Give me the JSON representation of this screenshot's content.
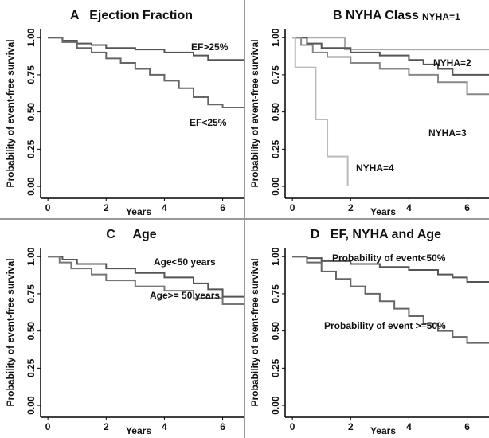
{
  "chart_data": [
    {
      "type": "line",
      "step": true,
      "title": "A   Ejection Fraction",
      "x_label": "Years",
      "y_label": "Probability of event-free survival",
      "xlim": [
        -0.25,
        6.75
      ],
      "ylim": [
        -0.08,
        1.06
      ],
      "xticks": [
        0,
        2,
        4,
        6
      ],
      "yticks": [
        {
          "value": 0,
          "label": "0.00"
        },
        0.25,
        {
          "value": 0.5,
          "label": "0.50"
        },
        0.75,
        {
          "value": 1,
          "label": "1.00"
        }
      ],
      "series": [
        {
          "name": "EF>25%",
          "color": "#555555",
          "x": [
            0,
            0.5,
            1,
            1.5,
            2,
            3,
            4,
            5,
            5.5,
            6.75
          ],
          "values": [
            1,
            0.98,
            0.96,
            0.95,
            0.93,
            0.92,
            0.9,
            0.88,
            0.85,
            0.85
          ]
        },
        {
          "name": "EF<25%",
          "color": "#666666",
          "x": [
            0,
            0.5,
            1,
            1.5,
            2,
            2.5,
            3,
            3.5,
            4,
            4.5,
            5,
            5.5,
            6,
            6.75
          ],
          "values": [
            1,
            0.97,
            0.93,
            0.9,
            0.86,
            0.83,
            0.79,
            0.75,
            0.71,
            0.66,
            0.6,
            0.55,
            0.53,
            0.53
          ]
        }
      ]
    },
    {
      "type": "line",
      "step": true,
      "title": "B NYHA Class",
      "x_label": "Years",
      "y_label": "Probability of event-free survival",
      "xlim": [
        -0.25,
        6.75
      ],
      "ylim": [
        -0.08,
        1.06
      ],
      "xticks": [
        0,
        2,
        4,
        6
      ],
      "yticks": [
        {
          "value": 0,
          "label": "0.00"
        },
        0.25,
        {
          "value": 0.5,
          "label": "0.50"
        },
        0.75,
        {
          "value": 1,
          "label": "1.00"
        }
      ],
      "series": [
        {
          "name": "NYHA=1",
          "color": "#aaaaaa",
          "x": [
            0,
            1.8,
            6.75
          ],
          "values": [
            1,
            0.92,
            0.92
          ]
        },
        {
          "name": "NYHA=2",
          "color": "#555555",
          "x": [
            0,
            0.5,
            1,
            2,
            3,
            4,
            4.5,
            5,
            5.5,
            6.75
          ],
          "values": [
            1,
            0.96,
            0.93,
            0.9,
            0.88,
            0.85,
            0.82,
            0.79,
            0.75,
            0.75
          ]
        },
        {
          "name": "NYHA=3",
          "color": "#888888",
          "x": [
            0,
            0.3,
            0.7,
            1.2,
            2,
            3,
            4,
            5,
            6,
            6.75
          ],
          "values": [
            1,
            0.95,
            0.9,
            0.87,
            0.83,
            0.79,
            0.75,
            0.7,
            0.62,
            0.62
          ]
        },
        {
          "name": "NYHA=4",
          "color": "#bbbbbb",
          "x": [
            0,
            0.1,
            0.8,
            1.2,
            1.9
          ],
          "values": [
            1,
            0.8,
            0.45,
            0.2,
            0
          ]
        }
      ]
    },
    {
      "type": "line",
      "step": true,
      "title": "C     Age",
      "x_label": "Years",
      "y_label": "Probability of event-free survival",
      "xlim": [
        -0.25,
        6.75
      ],
      "ylim": [
        -0.08,
        1.06
      ],
      "xticks": [
        0,
        2,
        4,
        6
      ],
      "yticks": [
        {
          "value": 0,
          "label": "0.00"
        },
        0.25,
        {
          "value": 0.5,
          "label": "0.50"
        },
        0.75,
        {
          "value": 1,
          "label": "1.00"
        }
      ],
      "series": [
        {
          "name": "Age<50 years",
          "color": "#555555",
          "x": [
            0,
            0.5,
            1,
            2,
            3,
            4,
            5,
            5.5,
            6,
            6.75
          ],
          "values": [
            1,
            0.98,
            0.95,
            0.92,
            0.89,
            0.86,
            0.82,
            0.78,
            0.73,
            0.73
          ]
        },
        {
          "name": "Age>= 50 years",
          "color": "#777777",
          "x": [
            0,
            0.4,
            0.8,
            1.5,
            2,
            3,
            4,
            5,
            6,
            6.75
          ],
          "values": [
            1,
            0.96,
            0.92,
            0.88,
            0.84,
            0.8,
            0.77,
            0.72,
            0.68,
            0.68
          ]
        }
      ]
    },
    {
      "type": "line",
      "step": true,
      "title": "D   EF, NYHA and Age",
      "x_label": "Years",
      "y_label": "Probability of event-free survival",
      "xlim": [
        -0.25,
        6.75
      ],
      "ylim": [
        -0.08,
        1.06
      ],
      "xticks": [
        0,
        2,
        4,
        6
      ],
      "yticks": [
        {
          "value": 0,
          "label": "0.00"
        },
        0.25,
        {
          "value": 0.5,
          "label": "0.50"
        },
        0.75,
        {
          "value": 1,
          "label": "1.00"
        }
      ],
      "series": [
        {
          "name": "Probability of event<50%",
          "color": "#555555",
          "x": [
            0,
            0.5,
            1,
            2,
            3,
            4,
            5,
            5.5,
            6,
            6.75
          ],
          "values": [
            1,
            0.99,
            0.97,
            0.95,
            0.93,
            0.91,
            0.88,
            0.86,
            0.83,
            0.83
          ]
        },
        {
          "name": "Probability of event >=50%",
          "color": "#666666",
          "x": [
            0,
            0.5,
            1,
            1.5,
            2,
            2.5,
            3,
            3.5,
            4,
            4.5,
            5,
            5.5,
            6,
            6.75
          ],
          "values": [
            1,
            0.96,
            0.9,
            0.85,
            0.8,
            0.75,
            0.7,
            0.65,
            0.6,
            0.55,
            0.5,
            0.46,
            0.42,
            0.42
          ]
        }
      ]
    }
  ]
}
